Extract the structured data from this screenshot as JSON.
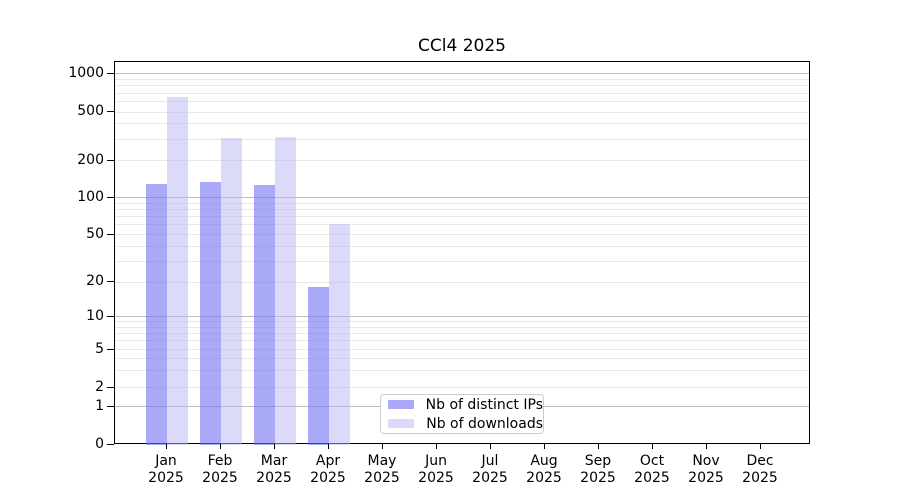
{
  "title": "CCl4 2025",
  "chart_data": {
    "type": "bar",
    "title": "CCl4 2025",
    "xlabel": "",
    "ylabel": "",
    "categories": [
      "Jan",
      "Feb",
      "Mar",
      "Apr",
      "May",
      "Jun",
      "Jul",
      "Aug",
      "Sep",
      "Oct",
      "Nov",
      "Dec"
    ],
    "year_label": "2025",
    "series": [
      {
        "name": "Nb of distinct IPs",
        "color": "rgba(112,112,242,0.6)",
        "values": [
          130,
          135,
          126,
          18,
          0,
          0,
          0,
          0,
          0,
          0,
          0,
          0
        ]
      },
      {
        "name": "Nb of downloads",
        "color": "rgba(183,183,243,0.5)",
        "values": [
          660,
          305,
          315,
          61,
          0,
          0,
          0,
          0,
          0,
          0,
          0,
          0
        ]
      }
    ],
    "y_ticks": [
      0,
      1,
      2,
      5,
      10,
      20,
      50,
      100,
      200,
      500,
      1000
    ],
    "y_major_gridlines": [
      1,
      10,
      100,
      1000
    ],
    "y_minor_gridlines": [
      2,
      3,
      4,
      5,
      6,
      7,
      8,
      9,
      20,
      30,
      40,
      50,
      60,
      70,
      80,
      90,
      200,
      300,
      400,
      500,
      600,
      700,
      800,
      900
    ],
    "y_scale": "symlog",
    "ylim": [
      0,
      1200
    ],
    "grid": true,
    "legend_position": "lower center",
    "colors": {
      "distinct_ips": "#a8a8f0",
      "downloads": "#d9d9f7",
      "major_grid": "#bdbdbd",
      "minor_grid": "#e8e8e8",
      "spine": "#000000"
    }
  }
}
